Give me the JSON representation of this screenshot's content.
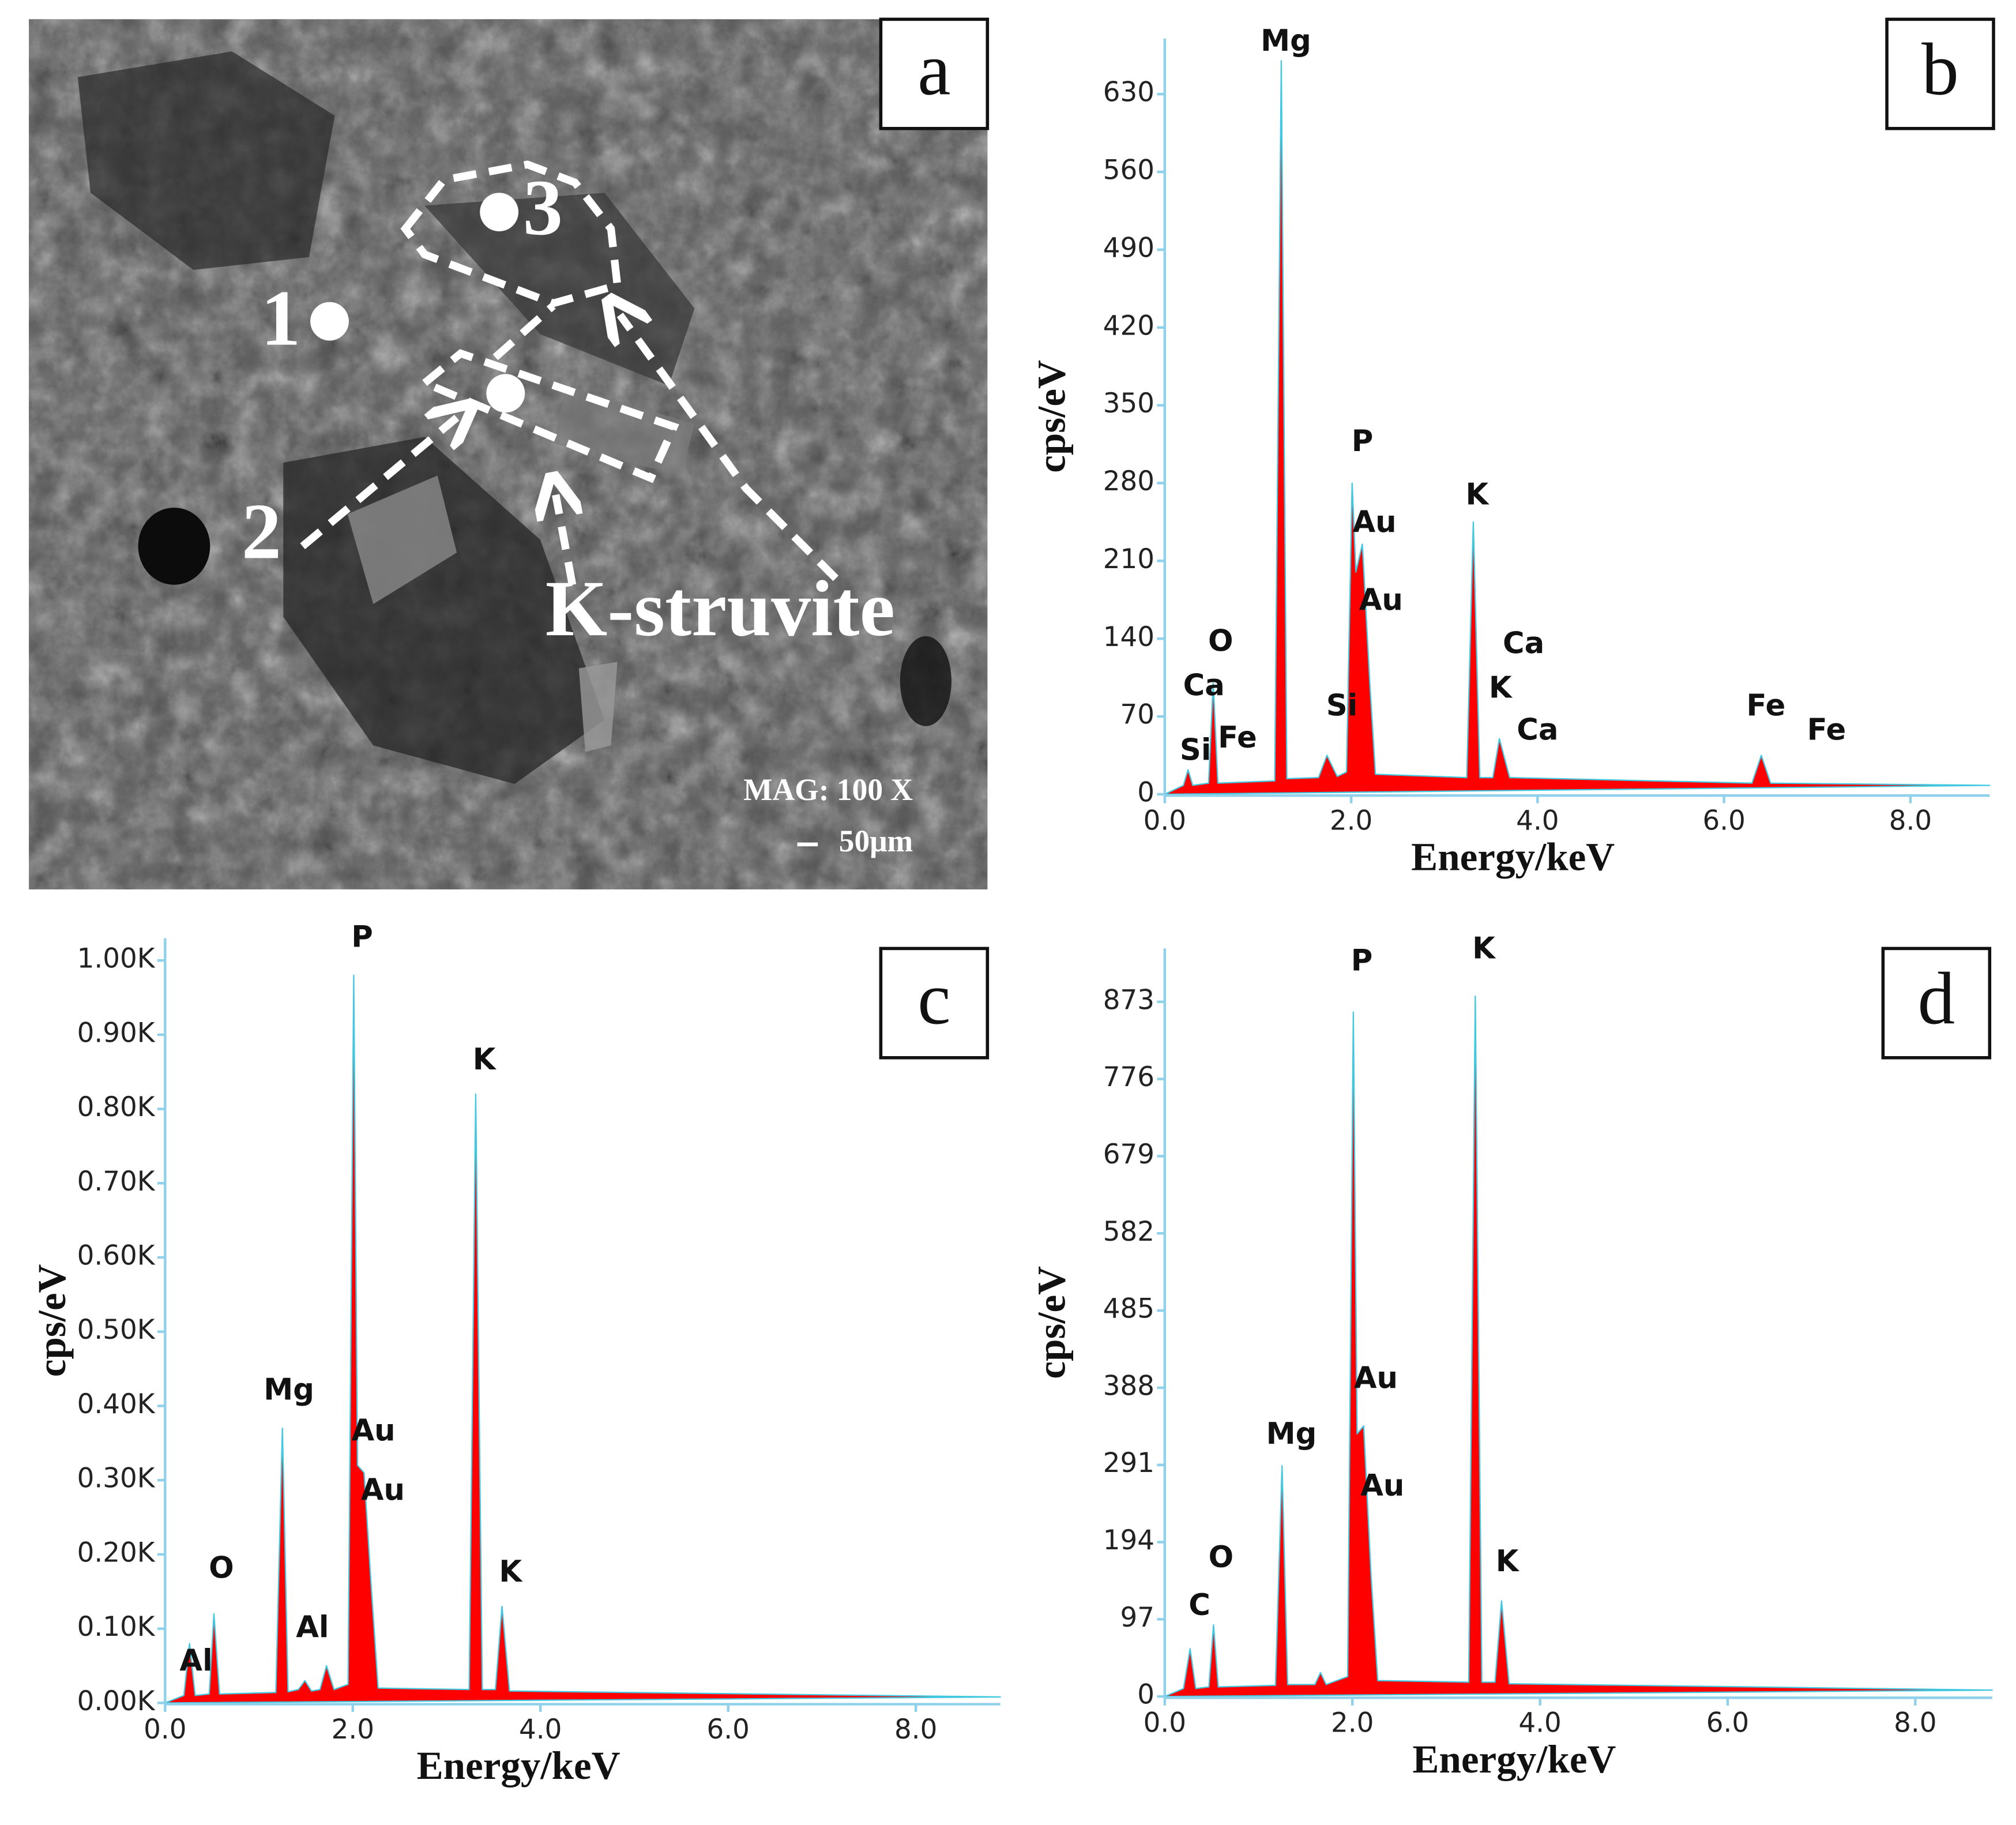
{
  "image": {
    "panel": "a",
    "labels": [
      "1",
      "2",
      "3",
      "K-struvite"
    ],
    "mag": "MAG: 100 X",
    "scale": "50μm"
  },
  "chart_data": [
    {
      "type": "area",
      "panel": "b",
      "ylabel": "cps/eV",
      "xlabel": "Energy/keV",
      "color": "#ff0000",
      "line_color": "#40c8e0",
      "xlim": [
        0,
        8.85
      ],
      "ylim": [
        0,
        680
      ],
      "xticks": [
        {
          "value": 0,
          "label": "0.0"
        },
        {
          "value": 2,
          "label": "2.0"
        },
        {
          "value": 4,
          "label": "4.0"
        },
        {
          "value": 6,
          "label": "6.0"
        },
        {
          "value": 8,
          "label": "8.0"
        }
      ],
      "yticks": [
        0,
        70,
        140,
        210,
        280,
        350,
        420,
        490,
        560,
        630
      ],
      "x": [
        0,
        0.2,
        0.25,
        0.3,
        0.47,
        0.52,
        0.57,
        1.18,
        1.25,
        1.31,
        1.65,
        1.74,
        1.85,
        1.95,
        2.01,
        2.05,
        2.12,
        2.2,
        2.26,
        3.24,
        3.31,
        3.38,
        3.52,
        3.59,
        3.7,
        6.3,
        6.4,
        6.5,
        8.85
      ],
      "values": [
        0,
        8,
        22,
        8,
        10,
        100,
        10,
        12,
        660,
        14,
        15,
        35,
        16,
        20,
        280,
        200,
        225,
        100,
        18,
        15,
        245,
        15,
        15,
        50,
        15,
        10,
        35,
        10,
        8
      ],
      "annotations": [
        {
          "text": "Mg",
          "x": 1.3,
          "y": 660
        },
        {
          "text": "P",
          "x": 2.12,
          "y": 300
        },
        {
          "text": "Au",
          "x": 2.25,
          "y": 227
        },
        {
          "text": "Au",
          "x": 2.32,
          "y": 157
        },
        {
          "text": "K",
          "x": 3.35,
          "y": 252
        },
        {
          "text": "Ca",
          "x": 3.85,
          "y": 118
        },
        {
          "text": "K",
          "x": 3.6,
          "y": 78
        },
        {
          "text": "Ca",
          "x": 4.0,
          "y": 40
        },
        {
          "text": "O",
          "x": 0.6,
          "y": 120
        },
        {
          "text": "Ca",
          "x": 0.42,
          "y": 80
        },
        {
          "text": "Si",
          "x": 0.33,
          "y": 22
        },
        {
          "text": "Fe",
          "x": 0.78,
          "y": 33
        },
        {
          "text": "Si",
          "x": 1.9,
          "y": 62
        },
        {
          "text": "Fe",
          "x": 6.45,
          "y": 62
        },
        {
          "text": "Fe",
          "x": 7.1,
          "y": 40
        }
      ]
    },
    {
      "type": "area",
      "panel": "c",
      "ylabel": "cps/eV",
      "xlabel": "Energy/keV",
      "color": "#ff0000",
      "line_color": "#40c8e0",
      "xlim": [
        0,
        8.9
      ],
      "ylim": [
        0,
        1030
      ],
      "xticks": [
        {
          "value": 0,
          "label": "0.0"
        },
        {
          "value": 2,
          "label": "2.0"
        },
        {
          "value": 4,
          "label": "4.0"
        },
        {
          "value": 6,
          "label": "6.0"
        },
        {
          "value": 8,
          "label": "8.0"
        }
      ],
      "yticks": [
        {
          "value": 0,
          "label": "0.00K"
        },
        {
          "value": 100,
          "label": "0.10K"
        },
        {
          "value": 200,
          "label": "0.20K"
        },
        {
          "value": 300,
          "label": "0.30K"
        },
        {
          "value": 400,
          "label": "0.40K"
        },
        {
          "value": 500,
          "label": "0.50K"
        },
        {
          "value": 600,
          "label": "0.60K"
        },
        {
          "value": 700,
          "label": "0.70K"
        },
        {
          "value": 800,
          "label": "0.80K"
        },
        {
          "value": 900,
          "label": "0.90K"
        },
        {
          "value": 1000,
          "label": "1.00K"
        }
      ],
      "x": [
        0,
        0.2,
        0.26,
        0.32,
        0.47,
        0.52,
        0.58,
        1.18,
        1.25,
        1.31,
        1.42,
        1.49,
        1.56,
        1.65,
        1.72,
        1.8,
        1.95,
        2.01,
        2.05,
        2.12,
        2.2,
        2.27,
        3.24,
        3.31,
        3.38,
        3.52,
        3.59,
        3.67,
        8.9
      ],
      "values": [
        0,
        10,
        80,
        10,
        12,
        120,
        12,
        14,
        370,
        15,
        18,
        30,
        16,
        18,
        50,
        18,
        25,
        980,
        320,
        310,
        150,
        20,
        18,
        820,
        18,
        18,
        130,
        16,
        8
      ],
      "annotations": [
        {
          "text": "P",
          "x": 2.1,
          "y": 1005
        },
        {
          "text": "K",
          "x": 3.4,
          "y": 840
        },
        {
          "text": "Mg",
          "x": 1.32,
          "y": 395
        },
        {
          "text": "Au",
          "x": 2.22,
          "y": 340
        },
        {
          "text": "Au",
          "x": 2.32,
          "y": 260
        },
        {
          "text": "K",
          "x": 3.68,
          "y": 150
        },
        {
          "text": "O",
          "x": 0.6,
          "y": 155
        },
        {
          "text": "Al",
          "x": 1.57,
          "y": 75
        },
        {
          "text": "Al",
          "x": 0.33,
          "y": 30
        }
      ]
    },
    {
      "type": "area",
      "panel": "d",
      "ylabel": "cps/eV",
      "xlabel": "Energy/keV",
      "color": "#ff0000",
      "line_color": "#40c8e0",
      "xlim": [
        0,
        8.82
      ],
      "ylim": [
        0,
        940
      ],
      "xticks": [
        {
          "value": 0,
          "label": "0.0"
        },
        {
          "value": 2,
          "label": "2.0"
        },
        {
          "value": 4,
          "label": "4.0"
        },
        {
          "value": 6,
          "label": "6.0"
        },
        {
          "value": 8,
          "label": "8.0"
        }
      ],
      "yticks": [
        0,
        97,
        194,
        291,
        388,
        485,
        582,
        679,
        776,
        873
      ],
      "x": [
        0,
        0.2,
        0.27,
        0.33,
        0.47,
        0.52,
        0.57,
        1.18,
        1.25,
        1.31,
        1.6,
        1.66,
        1.72,
        1.95,
        2.01,
        2.05,
        2.12,
        2.2,
        2.27,
        3.24,
        3.31,
        3.38,
        3.52,
        3.59,
        3.67,
        8.82
      ],
      "values": [
        0,
        10,
        60,
        10,
        12,
        90,
        12,
        14,
        290,
        15,
        15,
        30,
        15,
        25,
        860,
        330,
        340,
        150,
        20,
        18,
        880,
        18,
        18,
        120,
        16,
        8
      ],
      "annotations": [
        {
          "text": "P",
          "x": 2.1,
          "y": 900
        },
        {
          "text": "K",
          "x": 3.4,
          "y": 915
        },
        {
          "text": "Au",
          "x": 2.25,
          "y": 375
        },
        {
          "text": "Au",
          "x": 2.32,
          "y": 240
        },
        {
          "text": "Mg",
          "x": 1.35,
          "y": 305
        },
        {
          "text": "O",
          "x": 0.6,
          "y": 150
        },
        {
          "text": "C",
          "x": 0.37,
          "y": 90
        },
        {
          "text": "K",
          "x": 3.65,
          "y": 145
        }
      ]
    }
  ]
}
